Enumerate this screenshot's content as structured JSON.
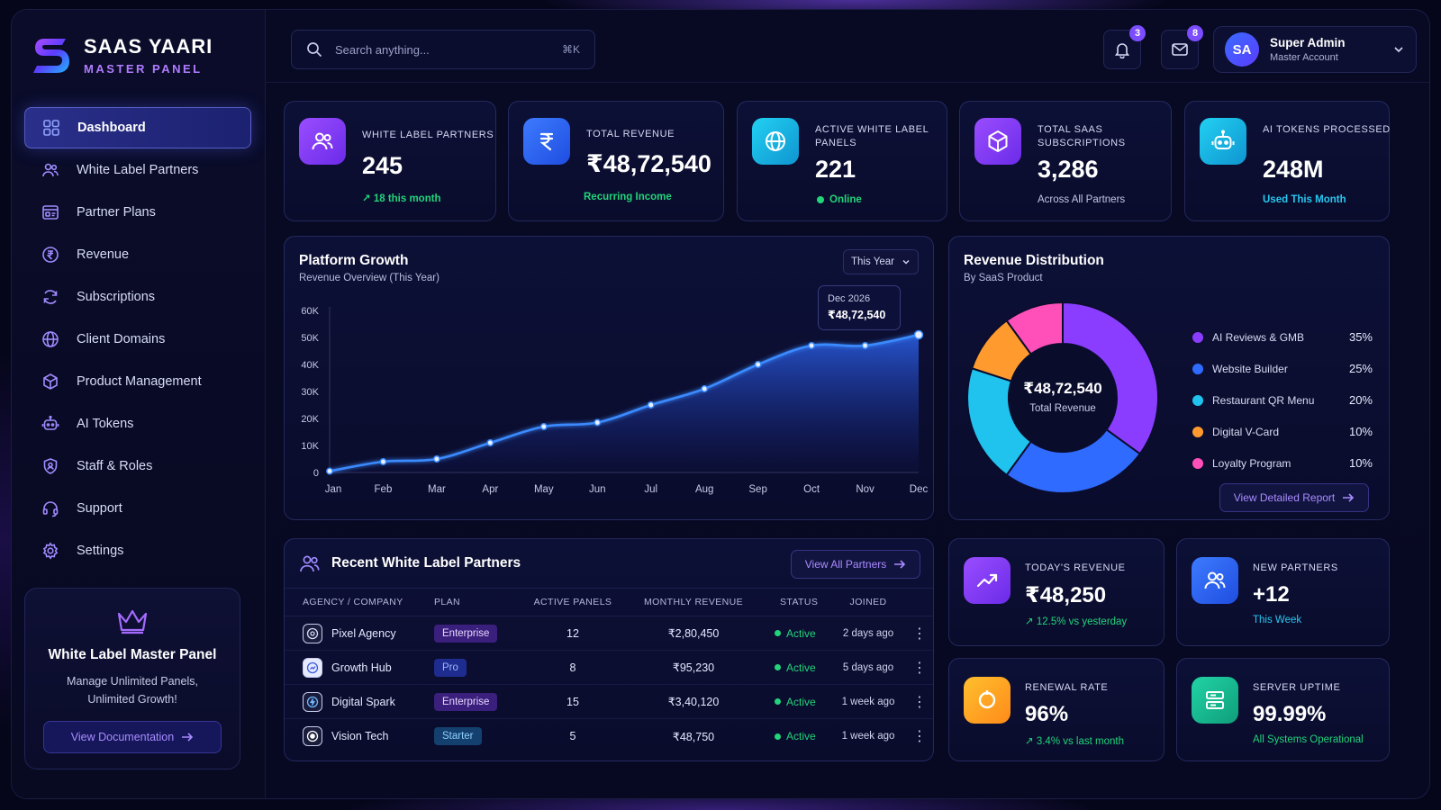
{
  "brand": {
    "title": "SAAS YAARI",
    "subtitle": "MASTER PANEL"
  },
  "sidebar": {
    "items": [
      {
        "label": "Dashboard",
        "icon": "grid-icon",
        "active": true
      },
      {
        "label": "White Label Partners",
        "icon": "users-icon"
      },
      {
        "label": "Partner Plans",
        "icon": "plans-icon"
      },
      {
        "label": "Revenue",
        "icon": "rupee-icon"
      },
      {
        "label": "Subscriptions",
        "icon": "refresh-icon"
      },
      {
        "label": "Client Domains",
        "icon": "globe-icon"
      },
      {
        "label": "Product Management",
        "icon": "box-icon"
      },
      {
        "label": "AI Tokens",
        "icon": "robot-icon"
      },
      {
        "label": "Staff & Roles",
        "icon": "shield-user-icon"
      },
      {
        "label": "Support",
        "icon": "headset-icon"
      },
      {
        "label": "Settings",
        "icon": "gear-icon"
      }
    ]
  },
  "promo": {
    "title": "White Label Master Panel",
    "text": "Manage Unlimited Panels, Unlimited Growth!",
    "button": "View Documentation"
  },
  "search": {
    "placeholder": "Search anything...",
    "shortcut": "⌘K"
  },
  "notifications": {
    "count": "3"
  },
  "messages": {
    "count": "8"
  },
  "profile": {
    "initials": "SA",
    "name": "Super Admin",
    "role": "Master Account"
  },
  "stats": [
    {
      "label": "White Label Partners",
      "value": "245",
      "sub": "↗ 18 this month",
      "icon": "users-icon",
      "color": "#8b3dff"
    },
    {
      "label": "Total Revenue",
      "value": "₹48,72,540",
      "sub": "Recurring Income",
      "icon": "rupee-icon",
      "color": "#2f6bff"
    },
    {
      "label": "Active White Label Panels",
      "value": "221",
      "sub": "Online",
      "icon": "globe-icon",
      "color": "#12b7e8"
    },
    {
      "label": "Total SaaS Subscriptions",
      "value": "3,286",
      "sub": "Across All Partners",
      "icon": "box-icon",
      "color": "#8b3dff"
    },
    {
      "label": "AI Tokens Processed",
      "value": "248M",
      "sub": "Used This Month",
      "icon": "robot-icon",
      "color": "#12b7e8"
    }
  ],
  "growth": {
    "title": "Platform Growth",
    "subtitle": "Revenue Overview (This Year)",
    "filter": "This Year",
    "tooltip_label": "Dec 2026",
    "tooltip_value": "₹48,72,540"
  },
  "distribution": {
    "title": "Revenue Distribution",
    "subtitle": "By SaaS Product",
    "center_value": "₹48,72,540",
    "center_label": "Total Revenue",
    "button": "View Detailed Report"
  },
  "chart_data": [
    {
      "type": "area",
      "title": "Platform Growth",
      "subtitle": "Revenue Overview (This Year)",
      "categories": [
        "Jan",
        "Feb",
        "Mar",
        "Apr",
        "May",
        "Jun",
        "Jul",
        "Aug",
        "Sep",
        "Oct",
        "Nov",
        "Dec"
      ],
      "values": [
        500,
        4000,
        5000,
        11000,
        17000,
        18500,
        25000,
        31000,
        40000,
        47000,
        47000,
        51000
      ],
      "yticks": [
        "0",
        "10K",
        "20K",
        "30K",
        "40K",
        "50K",
        "60K"
      ],
      "ylim": [
        0,
        60000
      ],
      "grid": false,
      "color": "#2f7bff"
    },
    {
      "type": "pie",
      "title": "Revenue Distribution",
      "subtitle": "By SaaS Product",
      "slices": [
        {
          "name": "AI Reviews & GMB",
          "value": 35,
          "label": "35%",
          "color": "#8a3dff"
        },
        {
          "name": "Website Builder",
          "value": 25,
          "label": "25%",
          "color": "#2f6bff"
        },
        {
          "name": "Restaurant QR Menu",
          "value": 20,
          "label": "20%",
          "color": "#1fc3ee"
        },
        {
          "name": "Digital V-Card",
          "value": 10,
          "label": "10%",
          "color": "#ff9a2e"
        },
        {
          "name": "Loyalty Program",
          "value": 10,
          "label": "10%",
          "color": "#ff4fb8"
        }
      ],
      "legend": "right"
    }
  ],
  "recent": {
    "title": "Recent White Label Partners",
    "button": "View All Partners",
    "columns": [
      "Agency / Company",
      "Plan",
      "Active Panels",
      "Monthly Revenue",
      "Status",
      "Joined"
    ],
    "rows": [
      {
        "name": "Pixel Agency",
        "plan": "Enterprise",
        "plan_type": "enterprise",
        "panels": "12",
        "revenue": "₹2,80,450",
        "status": "Active",
        "joined": "2 days ago"
      },
      {
        "name": "Growth Hub",
        "plan": "Pro",
        "plan_type": "pro",
        "panels": "8",
        "revenue": "₹95,230",
        "status": "Active",
        "joined": "5 days ago"
      },
      {
        "name": "Digital Spark",
        "plan": "Enterprise",
        "plan_type": "enterprise",
        "panels": "15",
        "revenue": "₹3,40,120",
        "status": "Active",
        "joined": "1 week ago"
      },
      {
        "name": "Vision Tech",
        "plan": "Starter",
        "plan_type": "starter",
        "panels": "5",
        "revenue": "₹48,750",
        "status": "Active",
        "joined": "1 week ago"
      }
    ]
  },
  "mini": [
    {
      "label": "Today's Revenue",
      "value": "₹48,250",
      "sub": "↗ 12.5% vs yesterday",
      "icon": "trend-up-icon",
      "color": "#8b3dff"
    },
    {
      "label": "New Partners",
      "value": "+12",
      "sub": "This Week",
      "icon": "users-icon",
      "color": "#2f6bff"
    },
    {
      "label": "Renewal Rate",
      "value": "96%",
      "sub": "↗ 3.4% vs last month",
      "icon": "refresh-icon",
      "color": "#ffb020"
    },
    {
      "label": "Server Uptime",
      "value": "99.99%",
      "sub": "All Systems Operational",
      "icon": "server-icon",
      "color": "#14c79a"
    }
  ]
}
